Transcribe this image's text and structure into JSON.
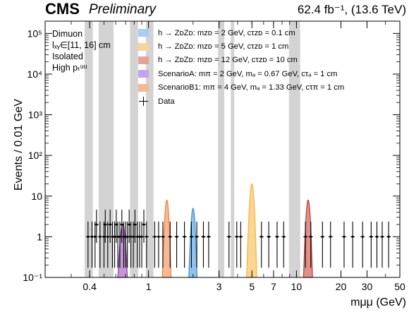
{
  "header": {
    "experiment": "CMS",
    "status": "Preliminary",
    "luminosity": "62.4 fb⁻¹,  (13.6 TeV)"
  },
  "selection": {
    "line1": "Dimuon",
    "line2": "lₓᵧ∈[11, 16] cm",
    "line3": "Isolated",
    "line4": "High pₜᵘᵘ"
  },
  "legend": {
    "entries": [
      {
        "label": "h → ZᴅZᴅ: mᴢᴅ = 2 GeV, cτᴢᴅ = 0.1 cm",
        "color": "#a9cdf0"
      },
      {
        "label": "h → ZᴅZᴅ: mᴢᴅ = 5 GeV, cτᴢᴅ = 1 cm",
        "color": "#f8d39b"
      },
      {
        "label": "h → ZᴅZᴅ: mᴢᴅ = 12 GeV, cτᴢᴅ = 10 cm",
        "color": "#e2a39b"
      },
      {
        "label": "ScenarioA: mπ = 2 GeV, mₐ = 0.67 GeV, cτₐ = 1 cm",
        "color": "#c6a2e6"
      },
      {
        "label": "ScenarioB1: mπ = 4 GeV, mₐ = 1.33 GeV, cτπ = 1 cm",
        "color": "#f3b894"
      }
    ],
    "data_label": "Data"
  },
  "colors": {
    "veto_band": "#d3d3d3",
    "sig_zd2": "#3b8fd6",
    "sig_zd5": "#f4b43a",
    "sig_zd12": "#c1392b",
    "sig_scenA": "#8e44ad",
    "sig_scenB1": "#f07f3c",
    "data": "#000000"
  },
  "chart_data": {
    "type": "scatter",
    "xlabel": "mμμ (GeV)",
    "ylabel": "Events / 0.01 GeV",
    "x_scale": "log",
    "y_scale": "log",
    "xlim": [
      0.2,
      50
    ],
    "ylim": [
      0.1,
      200000
    ],
    "x_ticks": [
      {
        "value": 0.4,
        "label": "0.4"
      },
      {
        "value": 1,
        "label": "1"
      },
      {
        "value": 3,
        "label": "3"
      },
      {
        "value": 5,
        "label": "5"
      },
      {
        "value": 7,
        "label": "7"
      },
      {
        "value": 10,
        "label": "10"
      },
      {
        "value": 20,
        "label": "20"
      },
      {
        "value": 30,
        "label": "30"
      },
      {
        "value": 50,
        "label": "50"
      }
    ],
    "y_ticks": [
      {
        "value": 0.1,
        "label": "10⁻¹"
      },
      {
        "value": 1,
        "label": "1"
      },
      {
        "value": 10,
        "label": "10"
      },
      {
        "value": 100,
        "label": "10²"
      },
      {
        "value": 1000,
        "label": "10³"
      },
      {
        "value": 10000,
        "label": "10⁴"
      },
      {
        "value": 100000,
        "label": "10⁵"
      }
    ],
    "vetoed_mass_ranges_gev": [
      [
        0.37,
        0.42
      ],
      [
        0.46,
        0.58
      ],
      [
        0.75,
        0.85
      ],
      [
        0.96,
        1.08
      ],
      [
        2.95,
        3.25
      ],
      [
        3.6,
        3.8
      ],
      [
        8.9,
        10.6
      ]
    ],
    "data_points": [
      {
        "x": 0.39,
        "y": 1,
        "err": [
          0.827,
          1.36
        ]
      },
      {
        "x": 0.415,
        "y": 1,
        "err": [
          0.827,
          1.36
        ]
      },
      {
        "x": 0.435,
        "y": 1,
        "err": [
          0.827,
          1.36
        ]
      },
      {
        "x": 0.445,
        "y": 2,
        "err": [
          1.29,
          2.64
        ]
      },
      {
        "x": 0.47,
        "y": 1,
        "err": [
          0.827,
          1.36
        ]
      },
      {
        "x": 0.5,
        "y": 1,
        "err": [
          0.827,
          1.36
        ]
      },
      {
        "x": 0.51,
        "y": 2,
        "err": [
          1.29,
          2.64
        ]
      },
      {
        "x": 0.53,
        "y": 1,
        "err": [
          0.827,
          1.36
        ]
      },
      {
        "x": 0.55,
        "y": 2,
        "err": [
          1.29,
          2.64
        ]
      },
      {
        "x": 0.57,
        "y": 1,
        "err": [
          0.827,
          1.36
        ]
      },
      {
        "x": 0.59,
        "y": 1,
        "err": [
          0.827,
          1.36
        ]
      },
      {
        "x": 0.605,
        "y": 2,
        "err": [
          1.29,
          2.64
        ]
      },
      {
        "x": 0.62,
        "y": 1,
        "err": [
          0.827,
          1.36
        ]
      },
      {
        "x": 0.64,
        "y": 1,
        "err": [
          0.827,
          1.36
        ]
      },
      {
        "x": 0.66,
        "y": 2,
        "err": [
          1.29,
          2.64
        ]
      },
      {
        "x": 0.68,
        "y": 1,
        "err": [
          0.827,
          1.36
        ]
      },
      {
        "x": 0.7,
        "y": 1,
        "err": [
          0.827,
          1.36
        ]
      },
      {
        "x": 0.72,
        "y": 1,
        "err": [
          0.827,
          1.36
        ]
      },
      {
        "x": 0.74,
        "y": 2,
        "err": [
          1.29,
          2.64
        ]
      },
      {
        "x": 0.76,
        "y": 1,
        "err": [
          0.827,
          1.36
        ]
      },
      {
        "x": 0.79,
        "y": 1,
        "err": [
          0.827,
          1.36
        ]
      },
      {
        "x": 0.81,
        "y": 2,
        "err": [
          1.29,
          2.64
        ]
      },
      {
        "x": 0.84,
        "y": 1,
        "err": [
          0.827,
          1.36
        ]
      },
      {
        "x": 0.87,
        "y": 1,
        "err": [
          0.827,
          1.36
        ]
      },
      {
        "x": 0.9,
        "y": 1,
        "err": [
          0.827,
          1.36
        ]
      },
      {
        "x": 0.93,
        "y": 2,
        "err": [
          1.29,
          2.64
        ]
      },
      {
        "x": 0.97,
        "y": 1,
        "err": [
          0.827,
          1.36
        ]
      },
      {
        "x": 1.1,
        "y": 1,
        "err": [
          0.827,
          1.36
        ]
      },
      {
        "x": 1.17,
        "y": 1,
        "err": [
          0.827,
          1.36
        ]
      },
      {
        "x": 1.25,
        "y": 1,
        "err": [
          0.827,
          1.36
        ]
      },
      {
        "x": 1.4,
        "y": 1,
        "err": [
          0.827,
          1.36
        ]
      },
      {
        "x": 1.55,
        "y": 1,
        "err": [
          0.827,
          1.36
        ]
      },
      {
        "x": 1.75,
        "y": 1,
        "err": [
          0.827,
          1.36
        ]
      },
      {
        "x": 1.95,
        "y": 1,
        "err": [
          0.827,
          1.36
        ]
      },
      {
        "x": 2.12,
        "y": 1,
        "err": [
          0.827,
          1.36
        ]
      },
      {
        "x": 2.35,
        "y": 1,
        "err": [
          0.827,
          1.36
        ]
      },
      {
        "x": 2.55,
        "y": 1,
        "err": [
          0.827,
          1.36
        ]
      },
      {
        "x": 3.5,
        "y": 1,
        "err": [
          0.827,
          1.36
        ]
      },
      {
        "x": 3.95,
        "y": 1,
        "err": [
          0.827,
          1.36
        ]
      },
      {
        "x": 4.2,
        "y": 1,
        "err": [
          0.827,
          1.36
        ]
      },
      {
        "x": 5.8,
        "y": 1,
        "err": [
          0.827,
          1.36
        ]
      },
      {
        "x": 6.5,
        "y": 1,
        "err": [
          0.827,
          1.36
        ]
      },
      {
        "x": 7.4,
        "y": 1,
        "err": [
          0.827,
          1.36
        ]
      },
      {
        "x": 8.2,
        "y": 1,
        "err": [
          0.827,
          1.36
        ]
      },
      {
        "x": 11.5,
        "y": 1,
        "err": [
          0.827,
          1.36
        ]
      },
      {
        "x": 12.5,
        "y": 1,
        "err": [
          0.827,
          1.36
        ]
      },
      {
        "x": 15,
        "y": 1,
        "err": [
          0.827,
          1.36
        ]
      },
      {
        "x": 17,
        "y": 1,
        "err": [
          0.827,
          1.36
        ]
      },
      {
        "x": 21,
        "y": 1,
        "err": [
          0.827,
          1.36
        ]
      },
      {
        "x": 24,
        "y": 1,
        "err": [
          0.827,
          1.36
        ]
      },
      {
        "x": 28,
        "y": 1,
        "err": [
          0.827,
          1.36
        ]
      },
      {
        "x": 32,
        "y": 1,
        "err": [
          0.827,
          1.36
        ]
      },
      {
        "x": 35,
        "y": 1,
        "err": [
          0.827,
          1.36
        ]
      },
      {
        "x": 38,
        "y": 1,
        "err": [
          0.827,
          1.36
        ]
      },
      {
        "x": 42,
        "y": 1,
        "err": [
          0.827,
          1.36
        ]
      }
    ],
    "signals": [
      {
        "key": "sig_zd2",
        "peak_gev": 2.0,
        "peak_events": 5,
        "width_gev": 0.045
      },
      {
        "key": "sig_zd5",
        "peak_gev": 5.0,
        "peak_events": 20,
        "width_gev": 0.12
      },
      {
        "key": "sig_zd12",
        "peak_gev": 12.0,
        "peak_events": 8,
        "width_gev": 0.28
      },
      {
        "key": "sig_scenA",
        "peak_gev": 0.67,
        "peak_events": 2,
        "width_gev": 0.02
      },
      {
        "key": "sig_scenB1",
        "peak_gev": 1.33,
        "peak_events": 8,
        "width_gev": 0.03
      }
    ]
  }
}
